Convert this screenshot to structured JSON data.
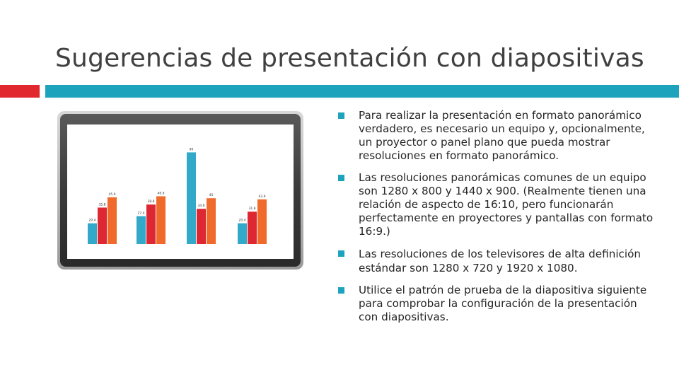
{
  "slide": {
    "title": "Sugerencias de presentación con diapositivas"
  },
  "colors": {
    "accent_red": "#e0282e",
    "accent_teal": "#1ea3bd",
    "bar_blue": "#32a9c8",
    "bar_red": "#dd2732",
    "bar_orange": "#ef6a2b"
  },
  "icons": {
    "bullet": "square-bullet-icon",
    "illustration": "monitor-bar-chart-illustration"
  },
  "bullets": [
    "Para realizar la presentación en formato panorámico verdadero, es necesario un equipo y, opcionalmente, un proyector o panel plano que pueda mostrar resoluciones en formato panorámico.",
    "Las resoluciones panorámicas comunes de un equipo son 1280 x 800 y 1440 x 900. (Realmente tienen una relación de aspecto de 16:10, pero funcionarán perfectamente en proyectores y pantallas con formato 16:9.)",
    "Las resoluciones de los televisores de alta definición estándar son 1280 x 720 y 1920 x 1080.",
    "Utilice el patrón de prueba de la diapositiva siguiente para comprobar la configuración de la presentación con diapositivas."
  ],
  "chart_data": {
    "type": "bar",
    "categories": [
      "",
      "",
      "",
      ""
    ],
    "series": [
      {
        "values": [
          20.4,
          27.4,
          90,
          20.4
        ]
      },
      {
        "values": [
          35.8,
          38.8,
          34.6,
          31.8
        ]
      },
      {
        "values": [
          45.9,
          46.9,
          45,
          43.9
        ]
      }
    ],
    "data_labels": [
      [
        "20.4",
        "35.8",
        "45.9"
      ],
      [
        "27.4",
        "38.8",
        "46.9"
      ],
      [
        "90",
        "34.6",
        "45"
      ],
      [
        "20.4",
        "31.8",
        "43.9"
      ]
    ],
    "ylim": [
      0,
      100
    ],
    "grid": false,
    "legend": "none"
  }
}
